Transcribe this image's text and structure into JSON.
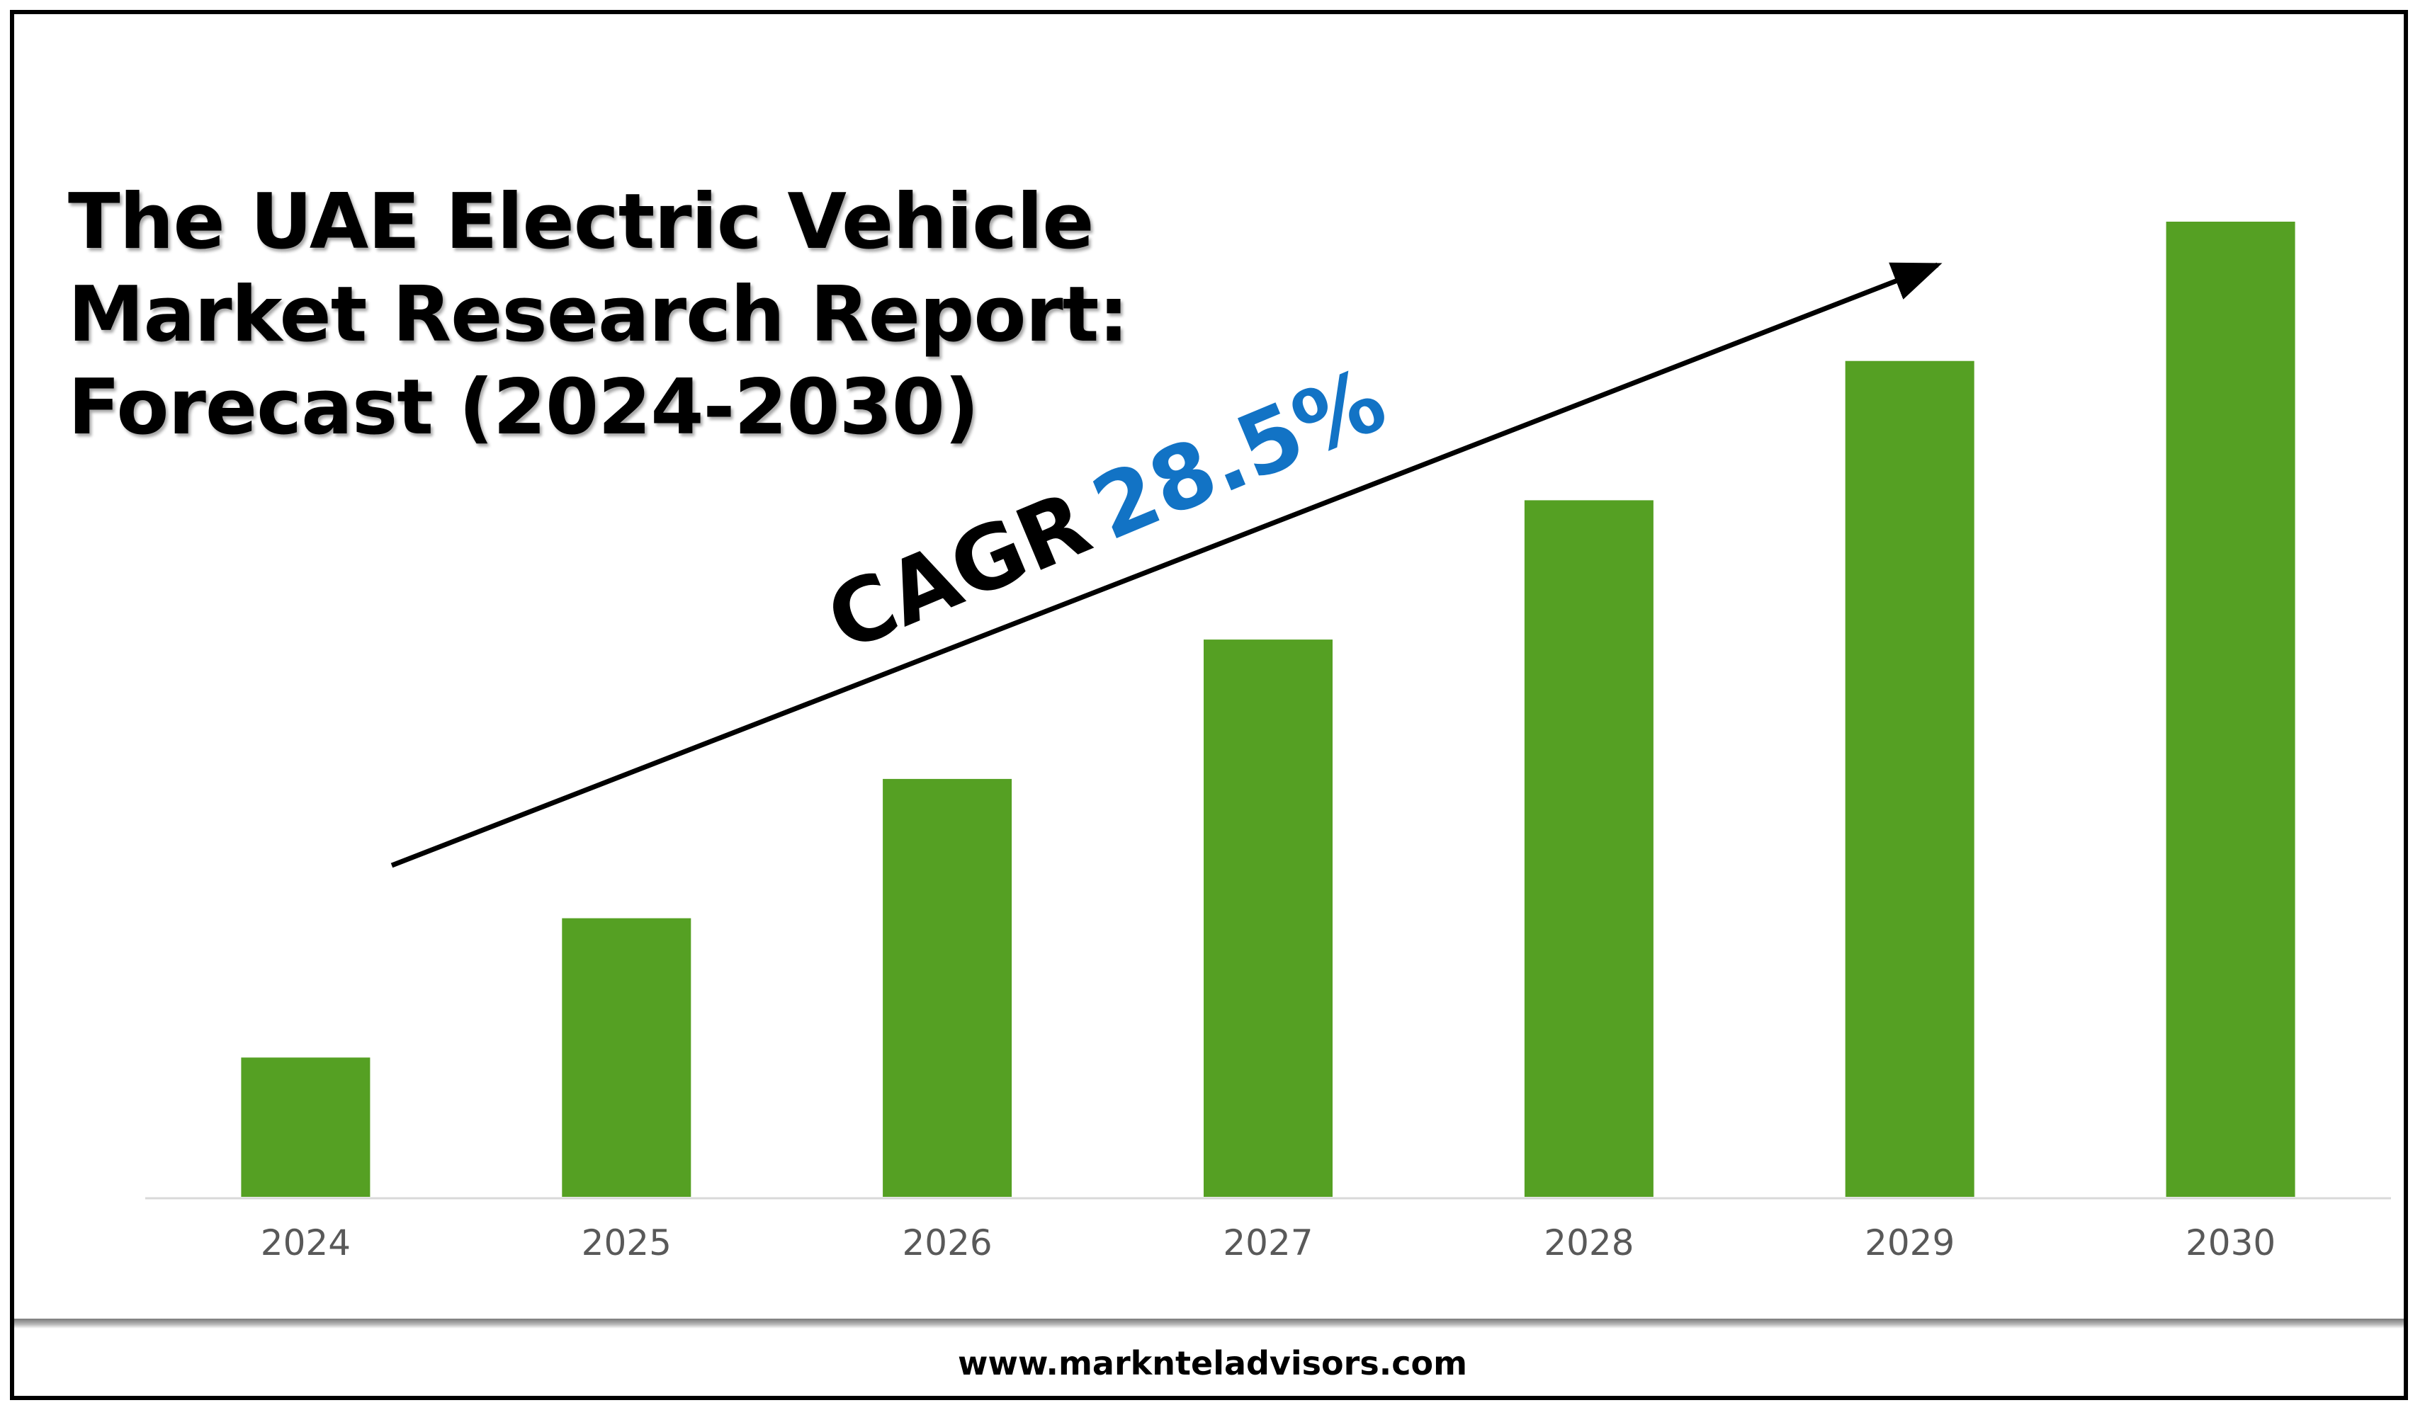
{
  "header": {
    "title_lines": [
      "The UAE Electric Vehicle",
      "Market Research Report:",
      "Forecast (2024-2030)"
    ]
  },
  "annotation": {
    "cagr_label": "CAGR",
    "cagr_value": "28.5%"
  },
  "footer": {
    "website": "www.marknteladvisors.com"
  },
  "colors": {
    "bar": "#55a023",
    "cagr_value": "#1273c5",
    "axis": "#d9d9d9",
    "tick_text": "#595959"
  },
  "chart_data": {
    "type": "bar",
    "title": "The UAE Electric Vehicle Market Research Report: Forecast (2024-2030)",
    "categories": [
      "2024",
      "2025",
      "2026",
      "2027",
      "2028",
      "2029",
      "2030"
    ],
    "values": [
      1,
      2,
      3,
      4,
      5,
      6,
      7
    ],
    "xlabel": "",
    "ylabel": "",
    "ylim": [
      0,
      7
    ],
    "y_axis_shown": false,
    "grid": false,
    "annotation": "CAGR 28.5%"
  }
}
